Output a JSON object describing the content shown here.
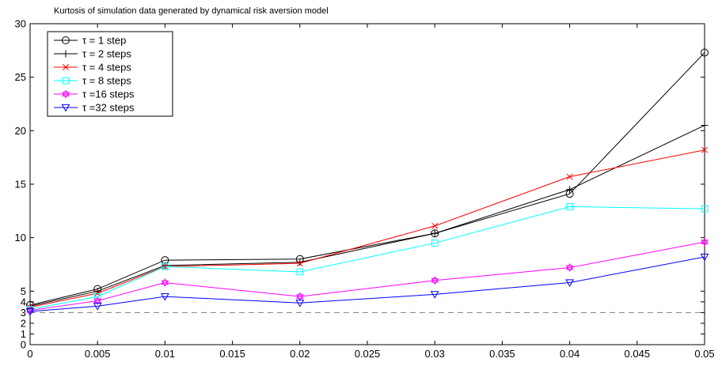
{
  "chart_data": {
    "type": "line",
    "title": "Kurtosis of simulation data generated by dynamical risk aversion model",
    "xlabel": "",
    "ylabel": "",
    "x": [
      0,
      0.005,
      0.01,
      0.02,
      0.03,
      0.04,
      0.05
    ],
    "xlim": [
      0,
      0.05
    ],
    "ylim": [
      0,
      30
    ],
    "xticks": [
      0,
      0.005,
      0.01,
      0.015,
      0.02,
      0.025,
      0.03,
      0.035,
      0.04,
      0.045,
      0.05
    ],
    "xtick_labels": [
      "0",
      "0.005",
      "0.01",
      "0.015",
      "0.02",
      "0.025",
      "0.03",
      "0.035",
      "0.04",
      "0.045",
      "0.05"
    ],
    "yticks": [
      0,
      1,
      2,
      3,
      4,
      5,
      10,
      15,
      20,
      25,
      30
    ],
    "ytick_labels": [
      "0",
      "1",
      "2",
      "3",
      "4",
      "5",
      "10",
      "15",
      "20",
      "25",
      "30"
    ],
    "grid": false,
    "legend_position": "top-left",
    "reference_line": {
      "y": 3,
      "style": "dashed",
      "color": "#808080"
    },
    "series": [
      {
        "name": "τ = 1 step",
        "color": "#000000",
        "marker": "circle",
        "values": [
          3.7,
          5.2,
          7.9,
          8.0,
          10.4,
          14.1,
          27.3
        ]
      },
      {
        "name": "τ = 2 steps",
        "color": "#000000",
        "marker": "plus",
        "values": [
          3.6,
          5.0,
          7.4,
          7.7,
          10.4,
          14.5,
          20.5
        ]
      },
      {
        "name": "τ = 4 steps",
        "color": "#ff0000",
        "marker": "x",
        "values": [
          3.5,
          4.8,
          7.3,
          7.6,
          11.1,
          15.7,
          18.2
        ]
      },
      {
        "name": "τ = 8 steps",
        "color": "#00ffff",
        "marker": "square",
        "values": [
          3.3,
          4.5,
          7.3,
          6.8,
          9.5,
          12.9,
          12.7
        ]
      },
      {
        "name": "τ =16 steps",
        "color": "#ff00ff",
        "marker": "hexagram",
        "values": [
          3.2,
          4.1,
          5.8,
          4.5,
          6.0,
          7.2,
          9.6
        ]
      },
      {
        "name": "τ =32 steps",
        "color": "#0000ff",
        "marker": "triangle-down",
        "values": [
          3.1,
          3.6,
          4.5,
          3.9,
          4.7,
          5.8,
          8.2
        ]
      }
    ]
  }
}
